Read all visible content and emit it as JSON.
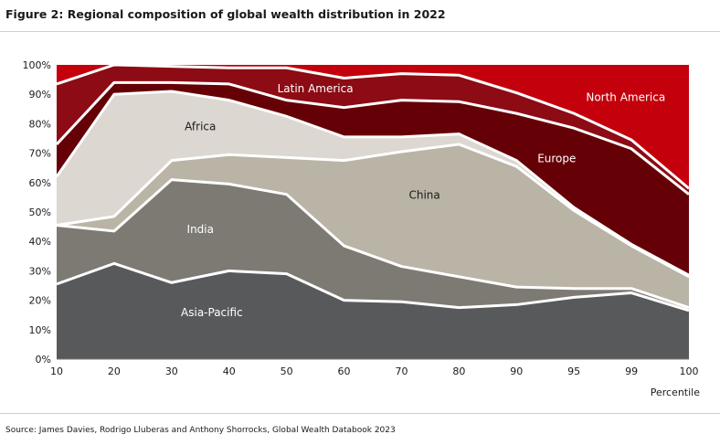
{
  "title": "Figure 2: Regional composition of global wealth distribution in 2022",
  "source": "Source: James Davies, Rodrigo Lluberas and Anthony Shorrocks, Global Wealth Databook 2023",
  "colors": {
    "asia_pacific": "#58595b",
    "india": "#7d7a74",
    "china": "#bab4a6",
    "africa": "#dcd7d0",
    "europe": "#650006",
    "latin_america": "#8c0b14",
    "north_america": "#c4000c",
    "separator": "#ffffff"
  },
  "chart_data": {
    "type": "area",
    "stacked": true,
    "normalized": true,
    "categories": [
      "10",
      "20",
      "30",
      "40",
      "50",
      "60",
      "70",
      "80",
      "90",
      "95",
      "99",
      "100"
    ],
    "xlabel": "Percentile",
    "ylabel": "",
    "ylim": [
      0,
      100
    ],
    "yticks": [
      "0%",
      "10%",
      "20%",
      "30%",
      "40%",
      "50%",
      "60%",
      "70%",
      "80%",
      "90%",
      "100%"
    ],
    "series": [
      {
        "name": "Asia-Pacific",
        "values": [
          25.5,
          32.5,
          26,
          30,
          29,
          20,
          19.5,
          17.5,
          18.5,
          21,
          22.5,
          16.5
        ]
      },
      {
        "name": "India",
        "values": [
          20,
          11,
          35,
          29.5,
          27,
          18.5,
          12,
          10.5,
          6,
          3,
          1.5,
          1
        ]
      },
      {
        "name": "China",
        "values": [
          0,
          5,
          6.5,
          10,
          12.5,
          29,
          39,
          45,
          41,
          26.5,
          14.5,
          10.5
        ]
      },
      {
        "name": "Africa",
        "values": [
          16.5,
          41.5,
          23.5,
          18.5,
          14,
          8,
          5,
          3.5,
          2,
          1,
          0.5,
          0.5
        ]
      },
      {
        "name": "Europe",
        "values": [
          11,
          4,
          3,
          5.5,
          5.5,
          10,
          12.5,
          11,
          16,
          27,
          32.5,
          27.5
        ]
      },
      {
        "name": "Latin America",
        "values": [
          20.5,
          6,
          5.5,
          5.5,
          11,
          10,
          9,
          9,
          7,
          5,
          3,
          2
        ]
      },
      {
        "name": "North America",
        "values": [
          6.5,
          0,
          0.5,
          1,
          1,
          4.5,
          3,
          3.5,
          9.5,
          16.5,
          25.5,
          42
        ]
      }
    ]
  }
}
